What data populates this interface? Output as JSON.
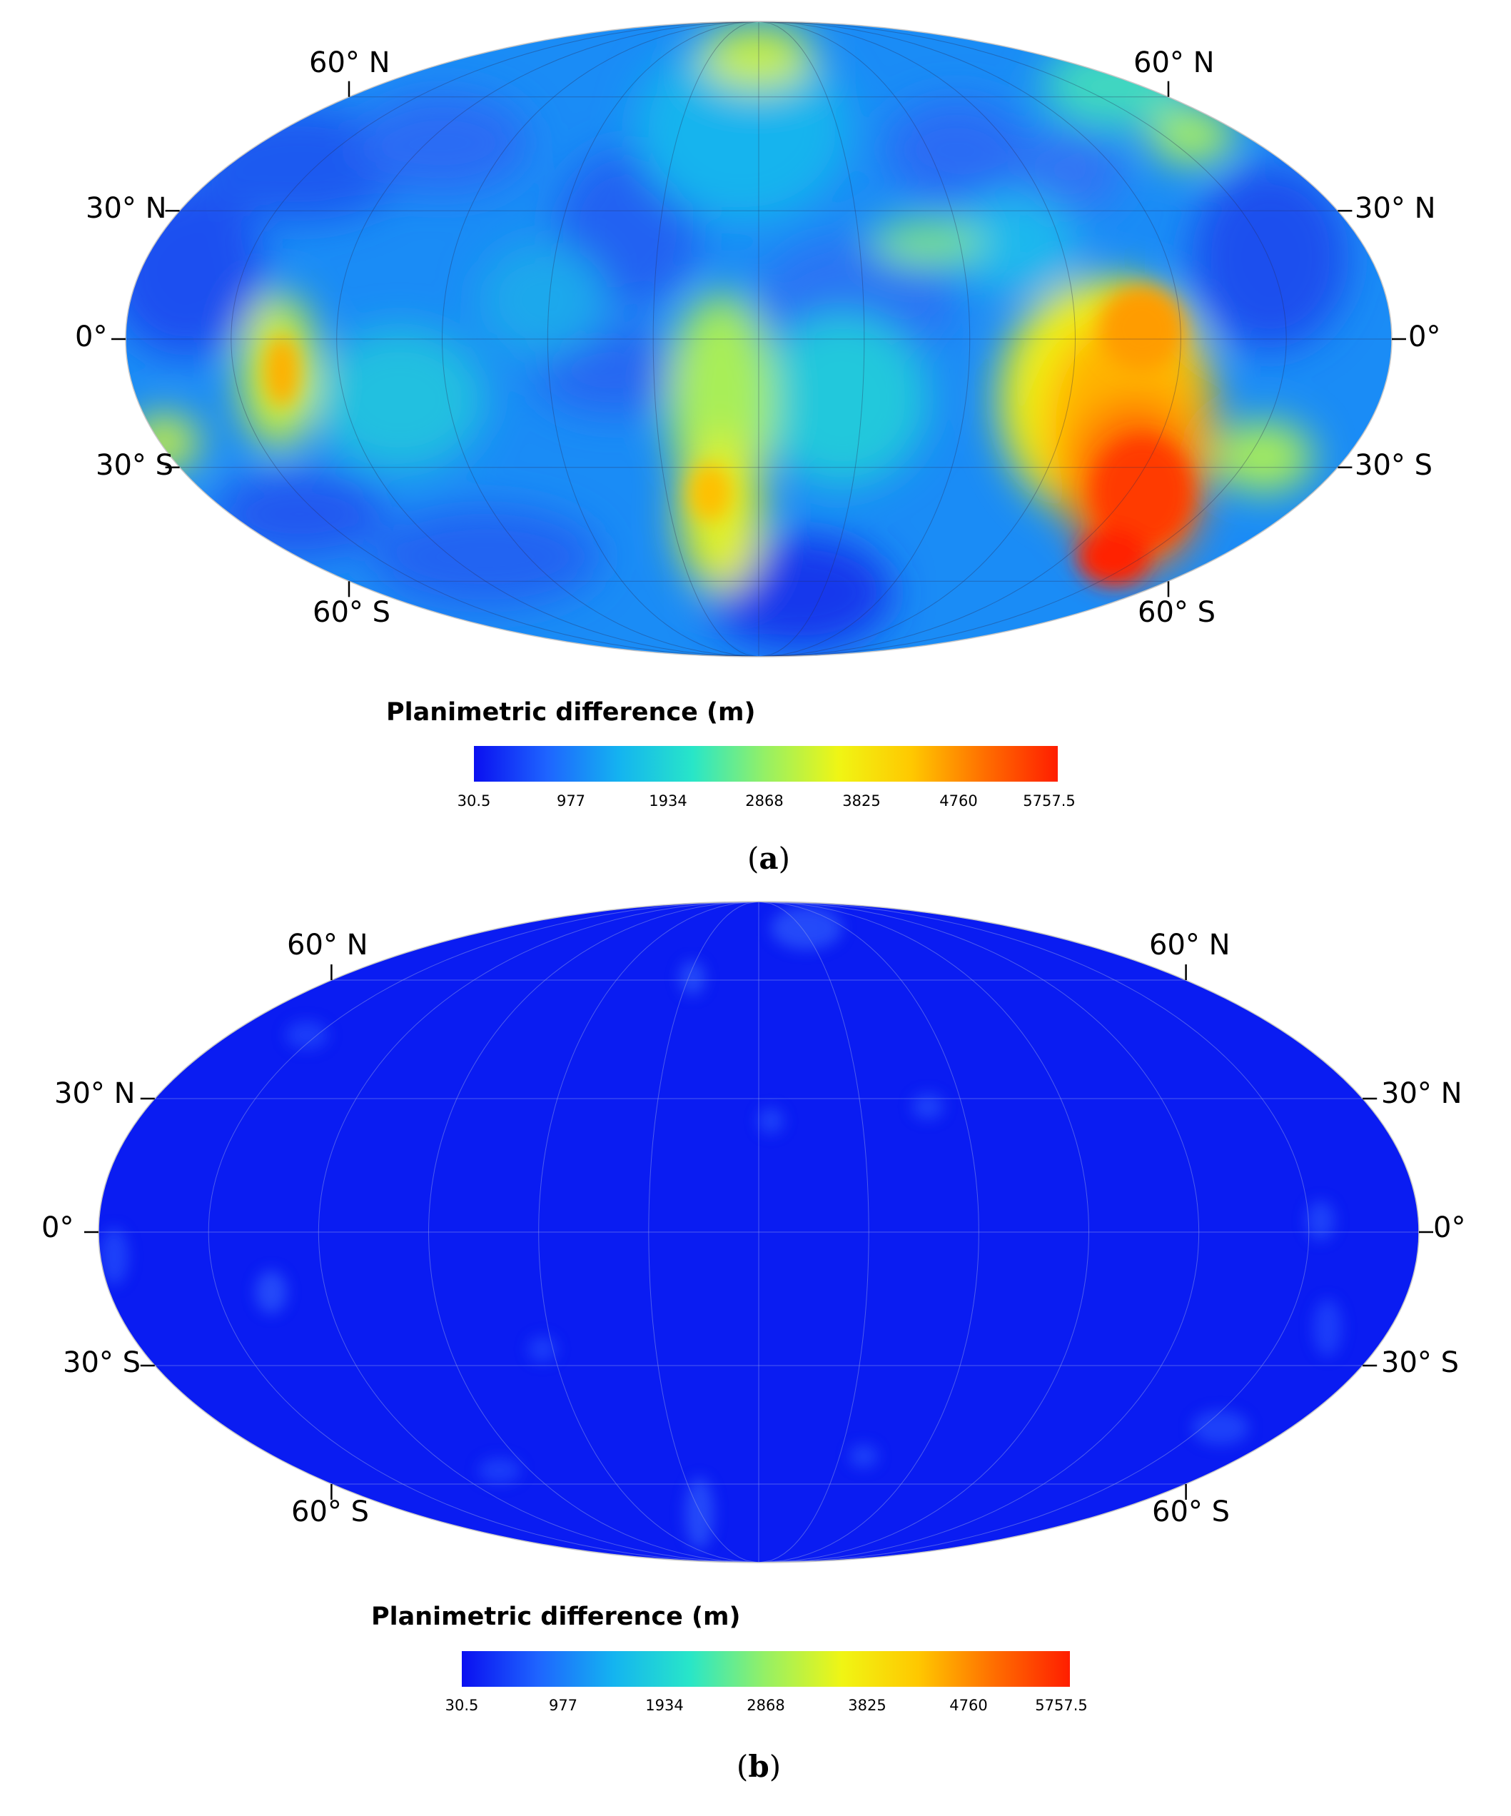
{
  "panels": [
    {
      "id": "a",
      "caption_letter": "a",
      "lat_labels_left": [
        "60° N",
        "30° N",
        "0°",
        "30° S",
        "60° S"
      ],
      "lat_labels_right": [
        "60° N",
        "30° N",
        "0°",
        "30° S",
        "60° S"
      ],
      "colorbar": {
        "title": "Planimetric difference (m)",
        "ticks": [
          "30.5",
          "977",
          "1934",
          "2868",
          "3825",
          "4760",
          "5757.5"
        ]
      },
      "field_description": "heterogeneous; high values (red) in southern mid-latitudes east of central meridian"
    },
    {
      "id": "b",
      "caption_letter": "b",
      "lat_labels_left": [
        "60° N",
        "30° N",
        "0°",
        "30° S",
        "60° S"
      ],
      "lat_labels_right": [
        "60° N",
        "30° N",
        "0°",
        "30° S",
        "60° S"
      ],
      "colorbar": {
        "title": "Planimetric difference (m)",
        "ticks": [
          "30.5",
          "977",
          "1934",
          "2868",
          "3825",
          "4760",
          "5757.5"
        ]
      },
      "field_description": "uniformly low values (blue)"
    }
  ],
  "colors": {
    "colormap": [
      "#0a0ff0",
      "#1e64ff",
      "#14b4f0",
      "#28e6c8",
      "#96f064",
      "#f0f514",
      "#ffc800",
      "#ff6e00",
      "#ff1e00"
    ],
    "panel_b_base": "#0a1cf2"
  }
}
